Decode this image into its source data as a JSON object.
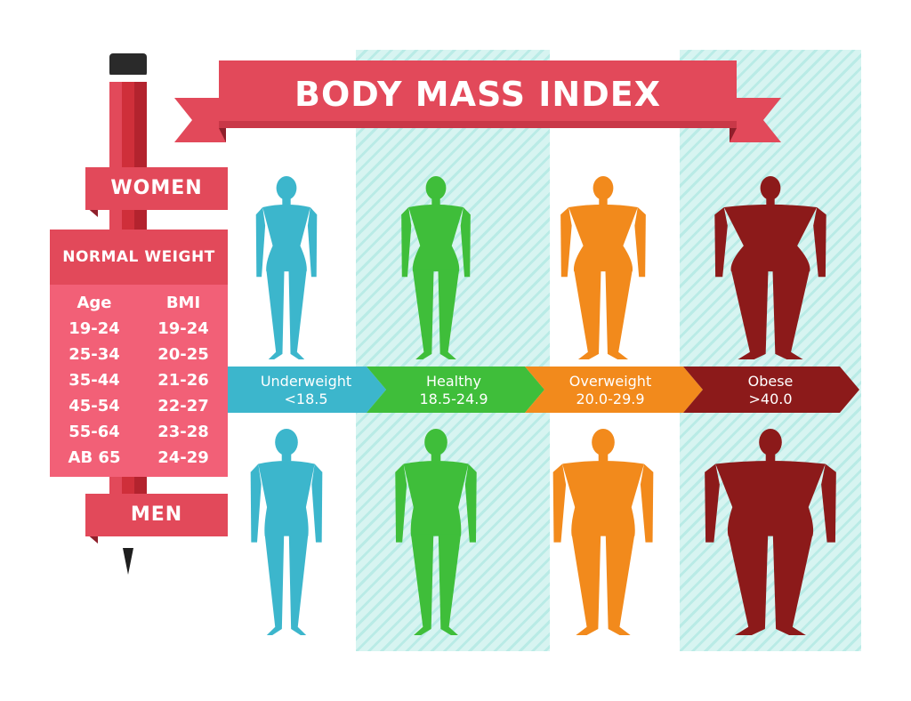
{
  "title": "BODY MASS INDEX",
  "women_label": "WOMEN",
  "men_label": "MEN",
  "normal_weight": {
    "heading": "NORMAL WEIGHT",
    "columns": [
      "Age",
      "BMI"
    ],
    "rows": [
      [
        "19-24",
        "19-24"
      ],
      [
        "25-34",
        "20-25"
      ],
      [
        "35-44",
        "21-26"
      ],
      [
        "45-54",
        "22-27"
      ],
      [
        "55-64",
        "23-28"
      ],
      [
        "AB 65",
        "24-29"
      ]
    ]
  },
  "categories": [
    {
      "name": "Underweight",
      "range": "<18.5",
      "color": "#3cb6cc"
    },
    {
      "name": "Healthy",
      "range": "18.5-24.9",
      "color": "#3fbe3a"
    },
    {
      "name": "Overweight",
      "range": "20.0-29.9",
      "color": "#f28a1c"
    },
    {
      "name": "Obese",
      "range": ">40.0",
      "color": "#8c1a1a"
    }
  ],
  "colors": {
    "accent_red": "#e2495a",
    "banner_shadow": "#b3303f",
    "table_pink": "#f26077",
    "stripe_mint": "#d7f4f1",
    "pencil_dark": "#2a2a2a"
  }
}
